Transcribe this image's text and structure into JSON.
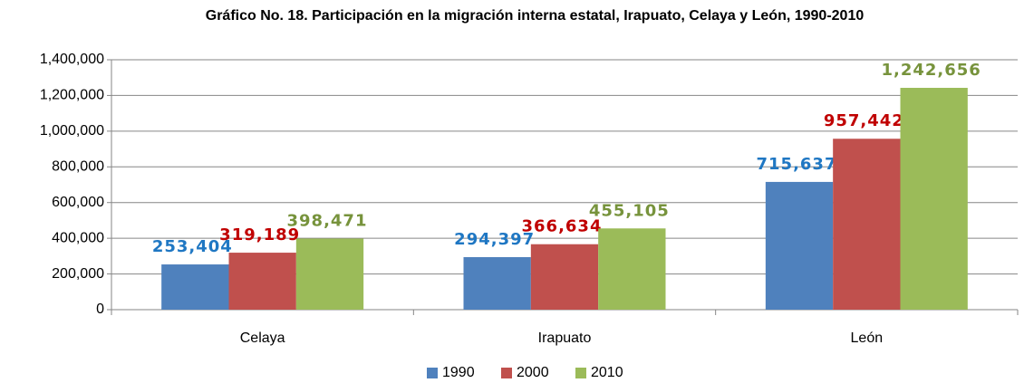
{
  "chart_data": {
    "type": "bar",
    "title": "Gráfico No. 18. Participación en la migración interna estatal, Irapuato, Celaya y León, 1990-2010",
    "categories": [
      "Celaya",
      "Irapuato",
      "León"
    ],
    "series": [
      {
        "name": "1990",
        "color": "#4f81bd",
        "label_color": "#1f77c3",
        "values": [
          253404,
          294397,
          715637
        ],
        "value_labels": [
          "253,404",
          "294,397",
          "715,637"
        ]
      },
      {
        "name": "2000",
        "color": "#c0504d",
        "label_color": "#c00000",
        "values": [
          319189,
          366634,
          957442
        ],
        "value_labels": [
          "319,189",
          "366,634",
          "957,442"
        ]
      },
      {
        "name": "2010",
        "color": "#9bbb59",
        "label_color": "#77933c",
        "values": [
          398471,
          455105,
          1242656
        ],
        "value_labels": [
          "398,471",
          "455,105",
          "1,242,656"
        ]
      }
    ],
    "ylim": [
      0,
      1400000
    ],
    "yticks": [
      0,
      {
        "value": 200000,
        "label": "200,000"
      },
      {
        "value": 400000,
        "label": "400,000"
      },
      {
        "value": 600000,
        "label": "600,000"
      },
      {
        "value": 800000,
        "label": "800,000"
      },
      {
        "value": 1000000,
        "label": "1,000,000"
      },
      {
        "value": 1200000,
        "label": "1,200,000"
      },
      {
        "value": 1400000,
        "label": "1,400,000"
      }
    ],
    "grid": true,
    "legend": "bottom"
  }
}
